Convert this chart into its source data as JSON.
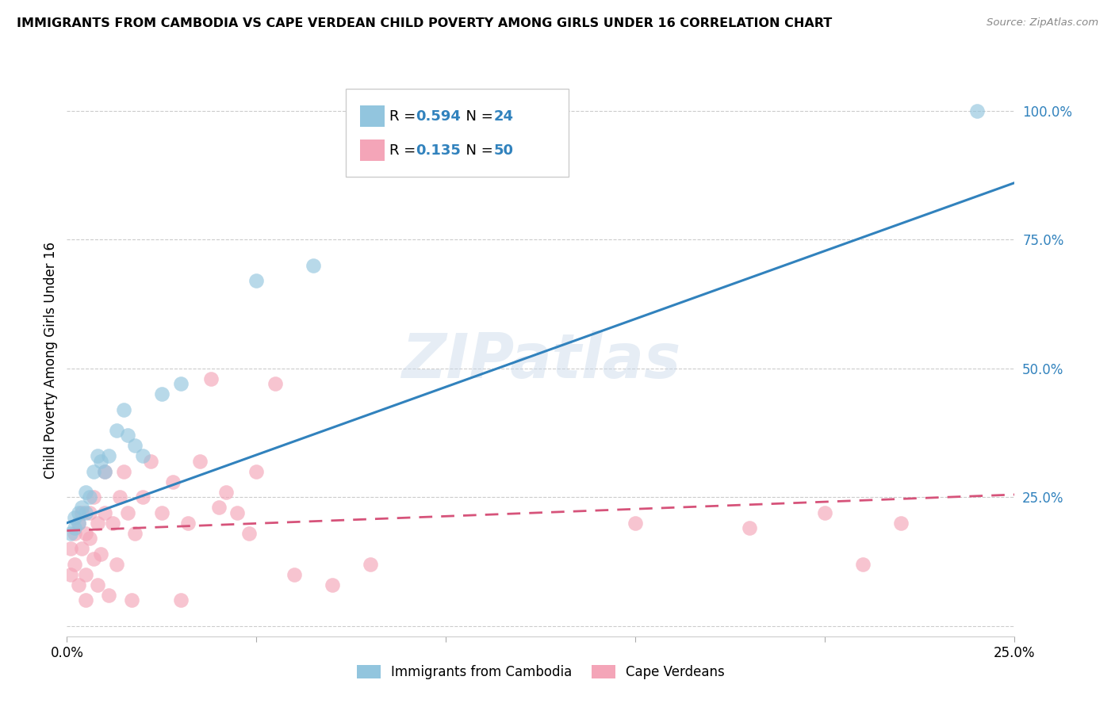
{
  "title": "IMMIGRANTS FROM CAMBODIA VS CAPE VERDEAN CHILD POVERTY AMONG GIRLS UNDER 16 CORRELATION CHART",
  "source": "Source: ZipAtlas.com",
  "ylabel": "Child Poverty Among Girls Under 16",
  "watermark": "ZIPatlas",
  "series1_label": "Immigrants from Cambodia",
  "series2_label": "Cape Verdeans",
  "series1_R": "0.594",
  "series1_N": "24",
  "series2_R": "0.135",
  "series2_N": "50",
  "series1_color": "#92c5de",
  "series2_color": "#f4a5b8",
  "series1_line_color": "#3182bd",
  "series2_line_color": "#d6537a",
  "xlim": [
    0,
    0.25
  ],
  "ylim": [
    -0.02,
    1.05
  ],
  "yticks": [
    0.0,
    0.25,
    0.5,
    0.75,
    1.0
  ],
  "ytick_labels": [
    "",
    "25.0%",
    "50.0%",
    "75.0%",
    "100.0%"
  ],
  "xticks": [
    0.0,
    0.05,
    0.1,
    0.15,
    0.2,
    0.25
  ],
  "xtick_labels": [
    "0.0%",
    "",
    "",
    "",
    "",
    "25.0%"
  ],
  "series1_x": [
    0.001,
    0.002,
    0.002,
    0.003,
    0.003,
    0.004,
    0.005,
    0.005,
    0.006,
    0.007,
    0.008,
    0.009,
    0.01,
    0.011,
    0.013,
    0.015,
    0.016,
    0.018,
    0.02,
    0.025,
    0.03,
    0.05,
    0.065,
    0.24
  ],
  "series1_y": [
    0.18,
    0.19,
    0.21,
    0.2,
    0.22,
    0.23,
    0.22,
    0.26,
    0.25,
    0.3,
    0.33,
    0.32,
    0.3,
    0.33,
    0.38,
    0.42,
    0.37,
    0.35,
    0.33,
    0.45,
    0.47,
    0.67,
    0.7,
    1.0
  ],
  "series2_x": [
    0.001,
    0.001,
    0.002,
    0.002,
    0.003,
    0.003,
    0.004,
    0.004,
    0.005,
    0.005,
    0.005,
    0.006,
    0.006,
    0.007,
    0.007,
    0.008,
    0.008,
    0.009,
    0.01,
    0.01,
    0.011,
    0.012,
    0.013,
    0.014,
    0.015,
    0.016,
    0.017,
    0.018,
    0.02,
    0.022,
    0.025,
    0.028,
    0.03,
    0.032,
    0.035,
    0.038,
    0.04,
    0.042,
    0.045,
    0.048,
    0.05,
    0.055,
    0.06,
    0.07,
    0.08,
    0.15,
    0.18,
    0.2,
    0.21,
    0.22
  ],
  "series2_y": [
    0.15,
    0.1,
    0.18,
    0.12,
    0.08,
    0.2,
    0.22,
    0.15,
    0.1,
    0.18,
    0.05,
    0.22,
    0.17,
    0.25,
    0.13,
    0.2,
    0.08,
    0.14,
    0.22,
    0.3,
    0.06,
    0.2,
    0.12,
    0.25,
    0.3,
    0.22,
    0.05,
    0.18,
    0.25,
    0.32,
    0.22,
    0.28,
    0.05,
    0.2,
    0.32,
    0.48,
    0.23,
    0.26,
    0.22,
    0.18,
    0.3,
    0.47,
    0.1,
    0.08,
    0.12,
    0.2,
    0.19,
    0.22,
    0.12,
    0.2
  ],
  "blue_line_x0": 0.0,
  "blue_line_y0": 0.2,
  "blue_line_x1": 0.25,
  "blue_line_y1": 0.86,
  "pink_line_x0": 0.0,
  "pink_line_y0": 0.185,
  "pink_line_x1": 0.25,
  "pink_line_y1": 0.255
}
